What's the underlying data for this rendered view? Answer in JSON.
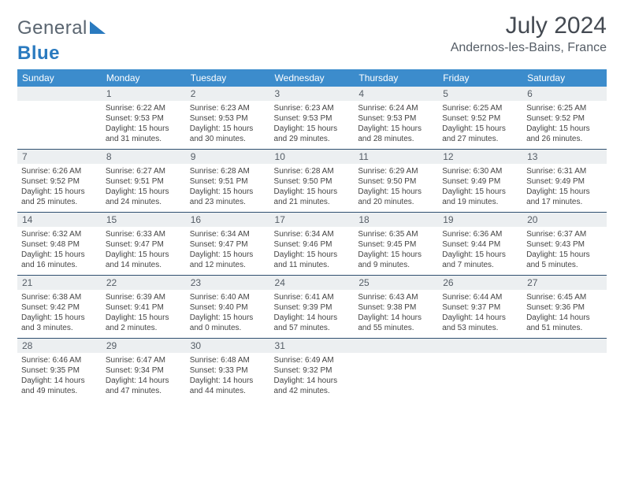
{
  "brand": {
    "part1": "General",
    "part2": "Blue"
  },
  "title": "July 2024",
  "location": "Andernos-les-Bains, France",
  "colors": {
    "header_bg": "#3c8ccc",
    "header_text": "#ffffff",
    "daynum_bg": "#eceff1",
    "row_divider": "#305070",
    "body_text": "#444444",
    "title_text": "#444a52",
    "logo_blue": "#2a7abf",
    "logo_gray": "#5a6570",
    "background": "#ffffff"
  },
  "typography": {
    "title_fontsize": 30,
    "location_fontsize": 16,
    "weekday_fontsize": 12,
    "daynum_fontsize": 12,
    "body_fontsize": 10
  },
  "weekdays": [
    "Sunday",
    "Monday",
    "Tuesday",
    "Wednesday",
    "Thursday",
    "Friday",
    "Saturday"
  ],
  "weeks": [
    [
      {
        "n": "",
        "sr": "",
        "ss": "",
        "dl": ""
      },
      {
        "n": "1",
        "sr": "Sunrise: 6:22 AM",
        "ss": "Sunset: 9:53 PM",
        "dl": "Daylight: 15 hours and 31 minutes."
      },
      {
        "n": "2",
        "sr": "Sunrise: 6:23 AM",
        "ss": "Sunset: 9:53 PM",
        "dl": "Daylight: 15 hours and 30 minutes."
      },
      {
        "n": "3",
        "sr": "Sunrise: 6:23 AM",
        "ss": "Sunset: 9:53 PM",
        "dl": "Daylight: 15 hours and 29 minutes."
      },
      {
        "n": "4",
        "sr": "Sunrise: 6:24 AM",
        "ss": "Sunset: 9:53 PM",
        "dl": "Daylight: 15 hours and 28 minutes."
      },
      {
        "n": "5",
        "sr": "Sunrise: 6:25 AM",
        "ss": "Sunset: 9:52 PM",
        "dl": "Daylight: 15 hours and 27 minutes."
      },
      {
        "n": "6",
        "sr": "Sunrise: 6:25 AM",
        "ss": "Sunset: 9:52 PM",
        "dl": "Daylight: 15 hours and 26 minutes."
      }
    ],
    [
      {
        "n": "7",
        "sr": "Sunrise: 6:26 AM",
        "ss": "Sunset: 9:52 PM",
        "dl": "Daylight: 15 hours and 25 minutes."
      },
      {
        "n": "8",
        "sr": "Sunrise: 6:27 AM",
        "ss": "Sunset: 9:51 PM",
        "dl": "Daylight: 15 hours and 24 minutes."
      },
      {
        "n": "9",
        "sr": "Sunrise: 6:28 AM",
        "ss": "Sunset: 9:51 PM",
        "dl": "Daylight: 15 hours and 23 minutes."
      },
      {
        "n": "10",
        "sr": "Sunrise: 6:28 AM",
        "ss": "Sunset: 9:50 PM",
        "dl": "Daylight: 15 hours and 21 minutes."
      },
      {
        "n": "11",
        "sr": "Sunrise: 6:29 AM",
        "ss": "Sunset: 9:50 PM",
        "dl": "Daylight: 15 hours and 20 minutes."
      },
      {
        "n": "12",
        "sr": "Sunrise: 6:30 AM",
        "ss": "Sunset: 9:49 PM",
        "dl": "Daylight: 15 hours and 19 minutes."
      },
      {
        "n": "13",
        "sr": "Sunrise: 6:31 AM",
        "ss": "Sunset: 9:49 PM",
        "dl": "Daylight: 15 hours and 17 minutes."
      }
    ],
    [
      {
        "n": "14",
        "sr": "Sunrise: 6:32 AM",
        "ss": "Sunset: 9:48 PM",
        "dl": "Daylight: 15 hours and 16 minutes."
      },
      {
        "n": "15",
        "sr": "Sunrise: 6:33 AM",
        "ss": "Sunset: 9:47 PM",
        "dl": "Daylight: 15 hours and 14 minutes."
      },
      {
        "n": "16",
        "sr": "Sunrise: 6:34 AM",
        "ss": "Sunset: 9:47 PM",
        "dl": "Daylight: 15 hours and 12 minutes."
      },
      {
        "n": "17",
        "sr": "Sunrise: 6:34 AM",
        "ss": "Sunset: 9:46 PM",
        "dl": "Daylight: 15 hours and 11 minutes."
      },
      {
        "n": "18",
        "sr": "Sunrise: 6:35 AM",
        "ss": "Sunset: 9:45 PM",
        "dl": "Daylight: 15 hours and 9 minutes."
      },
      {
        "n": "19",
        "sr": "Sunrise: 6:36 AM",
        "ss": "Sunset: 9:44 PM",
        "dl": "Daylight: 15 hours and 7 minutes."
      },
      {
        "n": "20",
        "sr": "Sunrise: 6:37 AM",
        "ss": "Sunset: 9:43 PM",
        "dl": "Daylight: 15 hours and 5 minutes."
      }
    ],
    [
      {
        "n": "21",
        "sr": "Sunrise: 6:38 AM",
        "ss": "Sunset: 9:42 PM",
        "dl": "Daylight: 15 hours and 3 minutes."
      },
      {
        "n": "22",
        "sr": "Sunrise: 6:39 AM",
        "ss": "Sunset: 9:41 PM",
        "dl": "Daylight: 15 hours and 2 minutes."
      },
      {
        "n": "23",
        "sr": "Sunrise: 6:40 AM",
        "ss": "Sunset: 9:40 PM",
        "dl": "Daylight: 15 hours and 0 minutes."
      },
      {
        "n": "24",
        "sr": "Sunrise: 6:41 AM",
        "ss": "Sunset: 9:39 PM",
        "dl": "Daylight: 14 hours and 57 minutes."
      },
      {
        "n": "25",
        "sr": "Sunrise: 6:43 AM",
        "ss": "Sunset: 9:38 PM",
        "dl": "Daylight: 14 hours and 55 minutes."
      },
      {
        "n": "26",
        "sr": "Sunrise: 6:44 AM",
        "ss": "Sunset: 9:37 PM",
        "dl": "Daylight: 14 hours and 53 minutes."
      },
      {
        "n": "27",
        "sr": "Sunrise: 6:45 AM",
        "ss": "Sunset: 9:36 PM",
        "dl": "Daylight: 14 hours and 51 minutes."
      }
    ],
    [
      {
        "n": "28",
        "sr": "Sunrise: 6:46 AM",
        "ss": "Sunset: 9:35 PM",
        "dl": "Daylight: 14 hours and 49 minutes."
      },
      {
        "n": "29",
        "sr": "Sunrise: 6:47 AM",
        "ss": "Sunset: 9:34 PM",
        "dl": "Daylight: 14 hours and 47 minutes."
      },
      {
        "n": "30",
        "sr": "Sunrise: 6:48 AM",
        "ss": "Sunset: 9:33 PM",
        "dl": "Daylight: 14 hours and 44 minutes."
      },
      {
        "n": "31",
        "sr": "Sunrise: 6:49 AM",
        "ss": "Sunset: 9:32 PM",
        "dl": "Daylight: 14 hours and 42 minutes."
      },
      {
        "n": "",
        "sr": "",
        "ss": "",
        "dl": ""
      },
      {
        "n": "",
        "sr": "",
        "ss": "",
        "dl": ""
      },
      {
        "n": "",
        "sr": "",
        "ss": "",
        "dl": ""
      }
    ]
  ]
}
